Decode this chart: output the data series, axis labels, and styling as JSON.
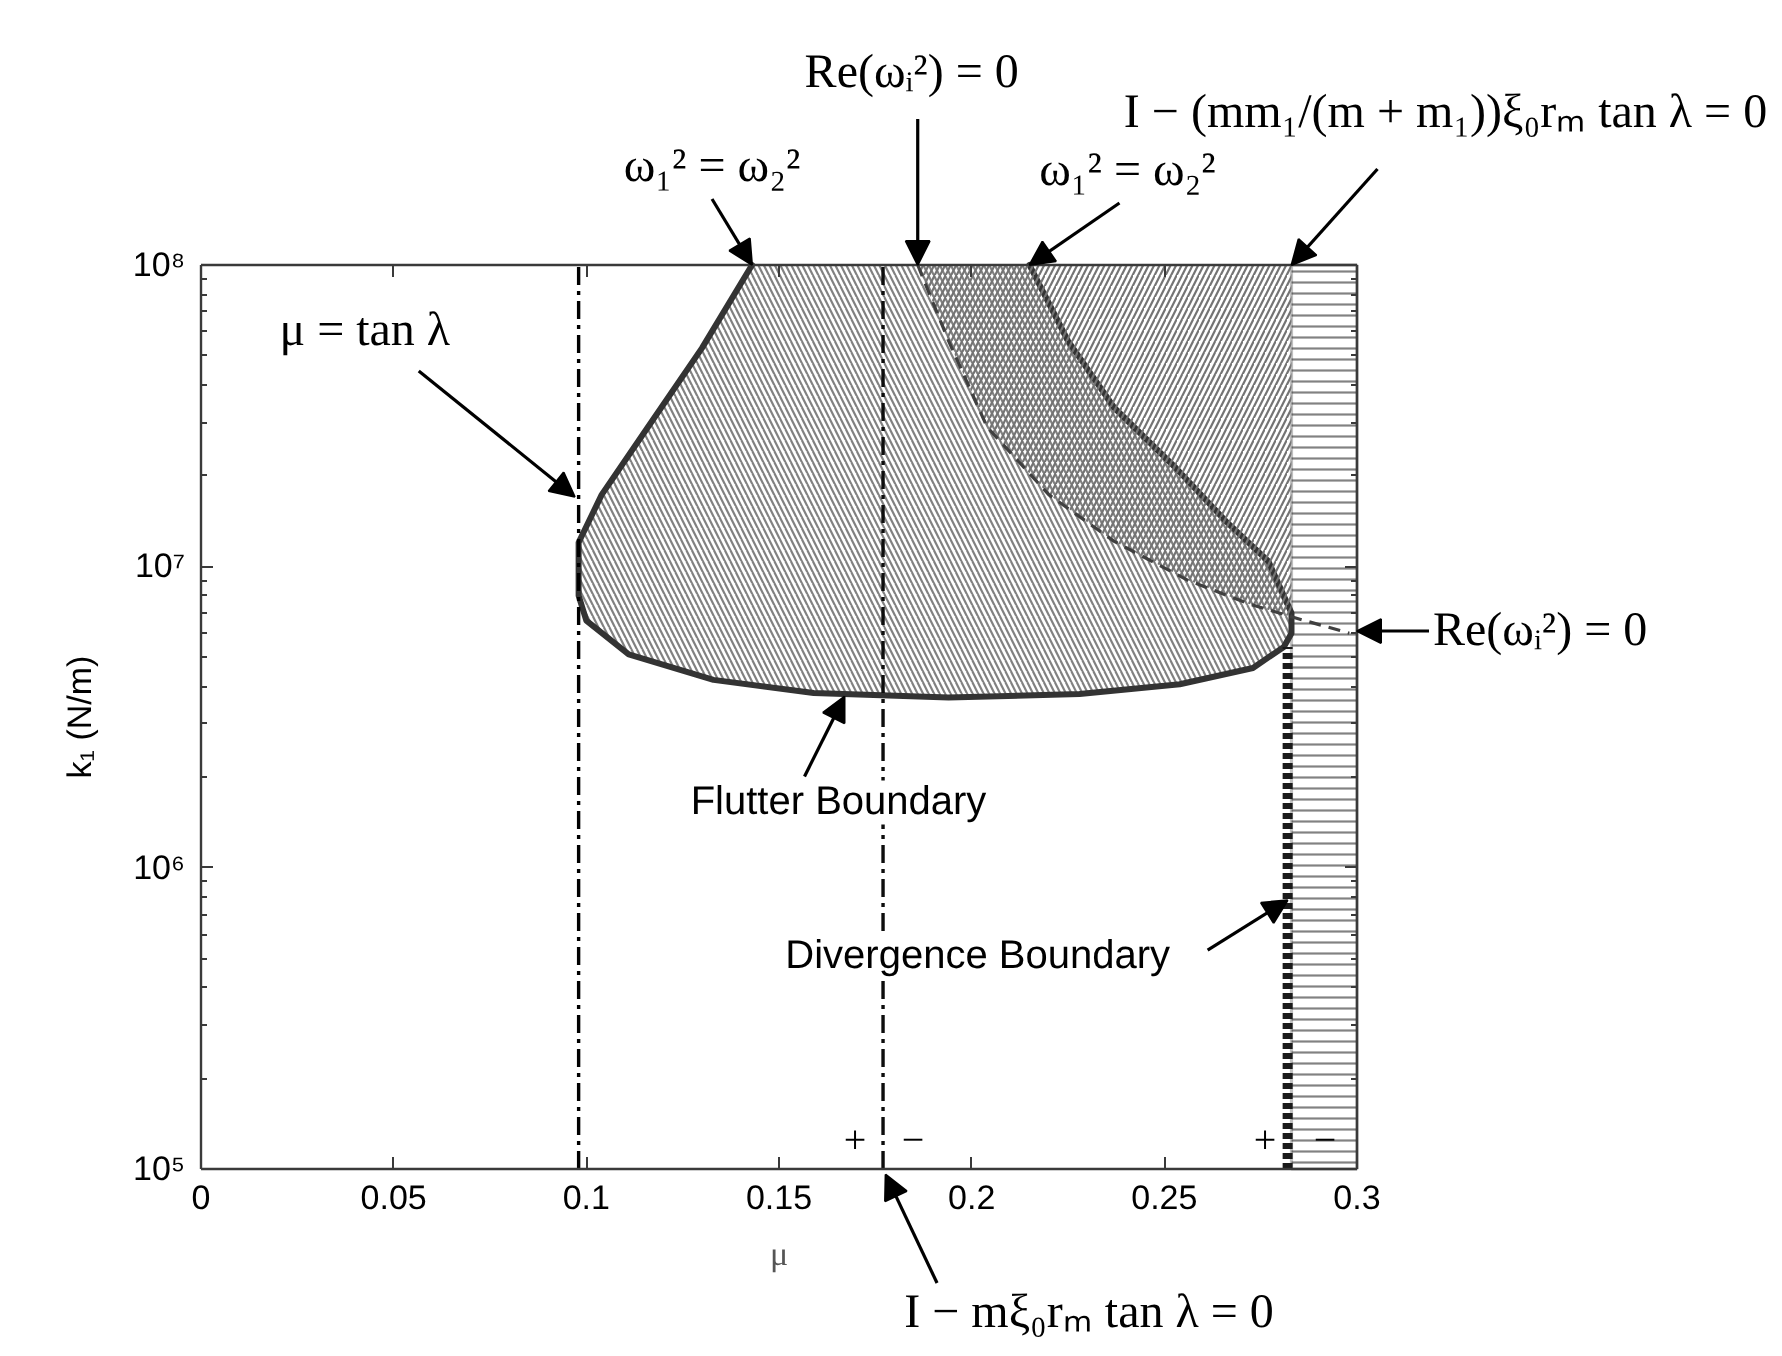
{
  "chart_data": {
    "type": "line",
    "xlabel": "μ",
    "ylabel": "k₁ (N/m)",
    "xlim": [
      0,
      0.3
    ],
    "ylim": [
      100000,
      100000000
    ],
    "log": "y",
    "grid": false,
    "xticks": [
      0,
      0.05,
      0.1,
      0.15,
      0.2,
      0.25,
      0.3
    ],
    "yticks": [
      {
        "value": 100000,
        "label": "10⁵"
      },
      {
        "value": 1000000,
        "label": "10⁶"
      },
      {
        "value": 10000000,
        "label": "10⁷"
      },
      {
        "value": 100000000,
        "label": "10⁸"
      }
    ],
    "series": [
      {
        "type": "area",
        "color": "#333333",
        "x": [
          0.143,
          0.13,
          0.116,
          0.104,
          0.098,
          0.098,
          0.1,
          0.111,
          0.133,
          0.159,
          0.194,
          0.228,
          0.254,
          0.273,
          0.281,
          0.283,
          0.283,
          0.277,
          0.266,
          0.253,
          0.237,
          0.225,
          0.215
        ],
        "values": [
          100000000.0,
          53000000.0,
          29000000.0,
          17300000.0,
          12000000.0,
          8000000.0,
          6600000.0,
          5100000.0,
          4200000.0,
          3800000.0,
          3670000.0,
          3770000.0,
          4060000.0,
          4600000.0,
          5400000.0,
          6000000.0,
          7000000.0,
          10400000.0,
          14100000.0,
          21200000.0,
          33600000.0,
          56000000.0,
          100000000.0
        ]
      },
      {
        "type": "area",
        "color": "#747474",
        "x": [
          0.186,
          0.194,
          0.204,
          0.22,
          0.237,
          0.256,
          0.272,
          0.283,
          0.283
        ],
        "values": [
          100000000.0,
          56000000.0,
          29000000.0,
          17300000.0,
          12100000.0,
          9000000.0,
          7500000.0,
          6800000.0,
          100000000.0
        ]
      },
      {
        "color": "#404040",
        "line_style": "dashed",
        "x": [
          0.186,
          0.194,
          0.204,
          0.22,
          0.237,
          0.256,
          0.272,
          0.283,
          0.298
        ],
        "values": [
          100000000.0,
          56000000.0,
          29000000.0,
          17300000.0,
          12100000.0,
          9000000.0,
          7500000.0,
          6800000.0,
          6000000.0
        ]
      },
      {
        "color": "#1a1a1a",
        "line_style": "dotted",
        "x": [
          0.282,
          0.282
        ],
        "values": [
          100000.0,
          5400000.0
        ]
      }
    ],
    "ref_lines": [
      {
        "axis": "x",
        "value": 0.098,
        "color": "#000000",
        "line_style": "dashdot"
      },
      {
        "axis": "x",
        "value": 0.177,
        "color": "#0d0d0d",
        "line_style": "dashdot"
      }
    ],
    "bands": [
      {
        "axis": "x",
        "from": 0.283,
        "to": 0.3,
        "color": "#2e2e2e"
      }
    ],
    "annotations": [
      {
        "text": "μ = tan λ",
        "x": 0.097,
        "y": 17000000.0
      },
      {
        "text": "ω₁² = ω₂²",
        "x": 0.143,
        "y": 100000000.0
      },
      {
        "text": "Re(ωᵢ²) = 0",
        "x": 0.186,
        "y": 100000000.0
      },
      {
        "text": "ω₁² = ω₂²",
        "x": 0.215,
        "y": 100000000.0
      },
      {
        "text": "I − (mm₁/(m + m₁))ξ₀rₘ tan λ = 0",
        "x": 0.283,
        "y": 100000000.0
      },
      {
        "text": "Re(ωᵢ²) = 0",
        "x": 0.3,
        "y": 6100000.0
      },
      {
        "text": "Flutter Boundary",
        "x": 0.167,
        "y": 3700000.0
      },
      {
        "text": "Divergence Boundary",
        "x": 0.282,
        "y": 780000.0
      },
      {
        "text": "I − mξ₀rₘ tan λ = 0",
        "x": 0.177,
        "y": 100000.0
      },
      "+",
      "−",
      "+",
      "−"
    ]
  }
}
